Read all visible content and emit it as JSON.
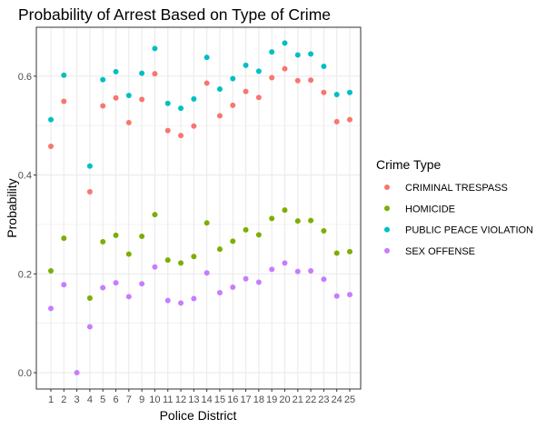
{
  "chart_data": {
    "type": "scatter",
    "title": "Probability of Arrest Based on Type of Crime",
    "xlabel": "Police District",
    "ylabel": "Probability",
    "ylim": [
      -0.033,
      0.699
    ],
    "yticks": [
      0.0,
      0.2,
      0.4,
      0.6
    ],
    "ytick_labels": [
      "0.0",
      "0.2",
      "0.4",
      "0.6"
    ],
    "grid": true,
    "legend": {
      "title": "Crime Type",
      "position": "right"
    },
    "categories": [
      "1",
      "2",
      "3",
      "4",
      "5",
      "6",
      "7",
      "9",
      "10",
      "11",
      "12",
      "13",
      "14",
      "15",
      "16",
      "17",
      "18",
      "19",
      "20",
      "21",
      "22",
      "23",
      "24",
      "25"
    ],
    "series": [
      {
        "name": "CRIMINAL TRESPASS",
        "color": "#F8766D",
        "values": [
          0.458,
          0.549,
          null,
          0.366,
          0.54,
          0.556,
          0.506,
          0.553,
          0.605,
          0.49,
          0.48,
          0.499,
          0.586,
          0.52,
          0.541,
          0.569,
          0.557,
          0.597,
          0.615,
          0.591,
          0.592,
          0.567,
          0.508,
          0.512
        ]
      },
      {
        "name": "HOMICIDE",
        "color": "#7CAE00",
        "values": [
          0.206,
          0.272,
          null,
          0.151,
          0.265,
          0.278,
          0.24,
          0.276,
          0.32,
          0.228,
          0.222,
          0.235,
          0.303,
          0.25,
          0.266,
          0.289,
          0.279,
          0.312,
          0.329,
          0.307,
          0.308,
          0.287,
          0.242,
          0.245
        ]
      },
      {
        "name": "PUBLIC PEACE VIOLATION",
        "color": "#00BFC4",
        "values": [
          0.512,
          0.602,
          null,
          0.418,
          0.593,
          0.609,
          0.561,
          0.606,
          0.656,
          0.545,
          0.535,
          0.554,
          0.638,
          0.574,
          0.595,
          0.622,
          0.61,
          0.649,
          0.667,
          0.643,
          0.645,
          0.62,
          0.563,
          0.567
        ]
      },
      {
        "name": "SEX OFFENSE",
        "color": "#C77CFF",
        "values": [
          0.13,
          0.178,
          0.0,
          0.093,
          0.172,
          0.182,
          0.154,
          0.18,
          0.214,
          0.146,
          0.141,
          0.15,
          0.202,
          0.162,
          0.173,
          0.19,
          0.183,
          0.209,
          0.222,
          0.205,
          0.206,
          0.189,
          0.155,
          0.158
        ]
      }
    ]
  }
}
